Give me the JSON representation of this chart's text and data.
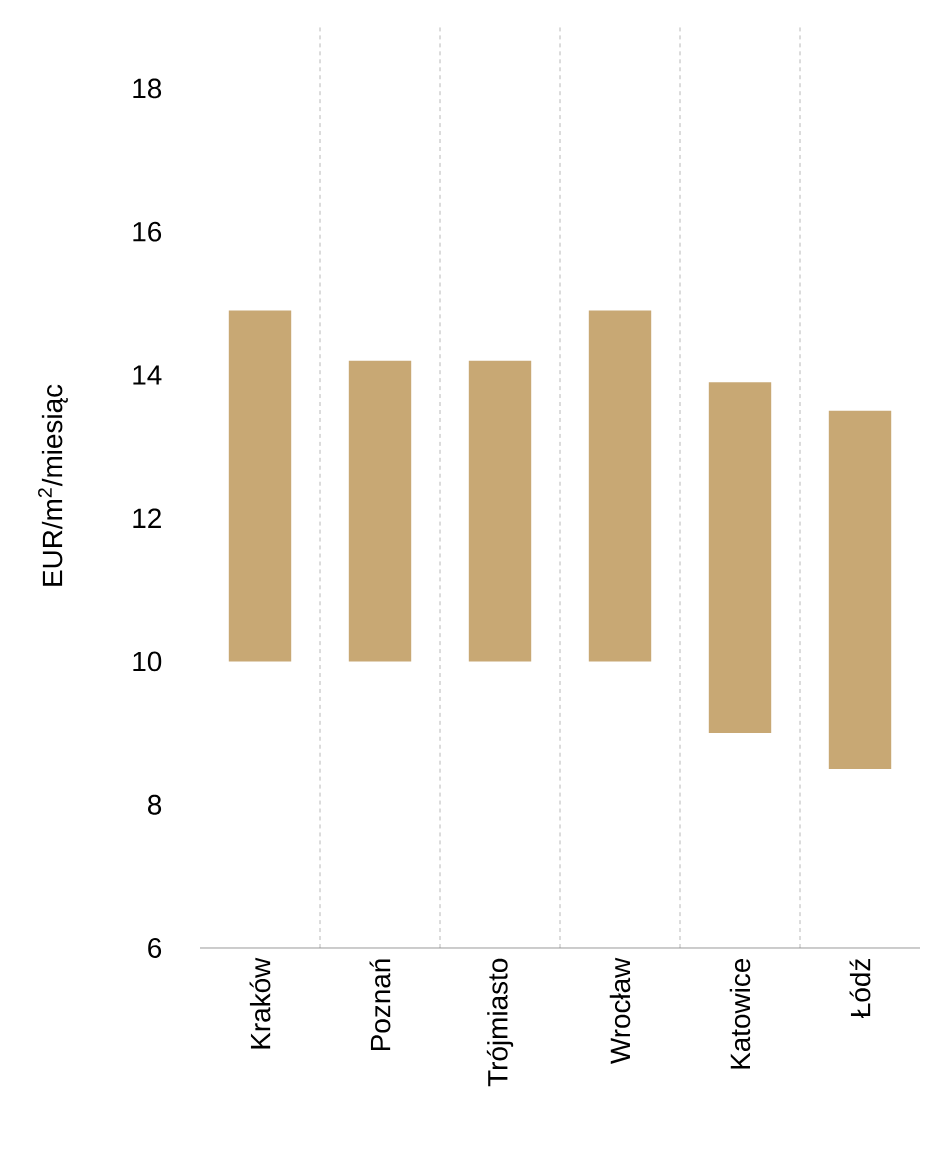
{
  "chart_data": {
    "type": "bar",
    "ylabel": "EUR/m$^{2}$/miesiąc",
    "categories": [
      "Kraków",
      "Poznań",
      "Trójmiasto",
      "Wrocław",
      "Katowice",
      "Łódź"
    ],
    "base": [
      10,
      10,
      10,
      10,
      9,
      8.5
    ],
    "values": [
      4.9,
      4.2,
      4.2,
      4.9,
      4.9,
      5.0
    ],
    "color": "#c8a874",
    "ylim": [
      6,
      18.9
    ],
    "yticks": [
      6,
      8,
      10,
      12,
      14,
      16,
      18
    ],
    "grid": "x"
  }
}
